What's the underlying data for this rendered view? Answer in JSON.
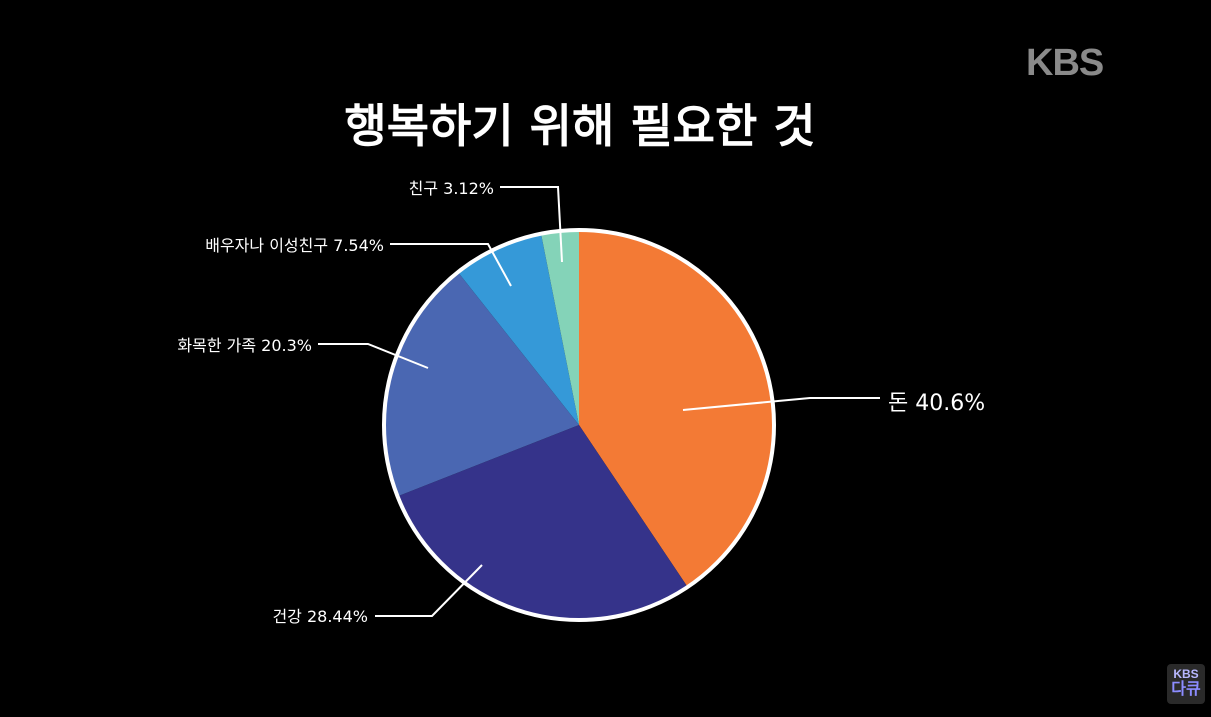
{
  "broadcaster": {
    "logo": "KBS",
    "corner_badge_top": "KBS",
    "corner_badge_bottom": "다큐"
  },
  "chart_data": {
    "type": "pie",
    "title": "행복하기 위해 필요한 것",
    "start_angle": "12 o'clock, clockwise",
    "slices": [
      {
        "label": "돈 40.6%",
        "value": 40.6,
        "color": "#f37a35"
      },
      {
        "label": "건강 28.44%",
        "value": 28.44,
        "color": "#35338a"
      },
      {
        "label": "화목한 가족 20.3%",
        "value": 20.3,
        "color": "#4a67b2"
      },
      {
        "label": "배우자나 이성친구 7.54%",
        "value": 7.54,
        "color": "#3599d8"
      },
      {
        "label": "친구 3.12%",
        "value": 3.12,
        "color": "#84d3b8"
      }
    ],
    "slice_border_color": "#ffffff"
  }
}
